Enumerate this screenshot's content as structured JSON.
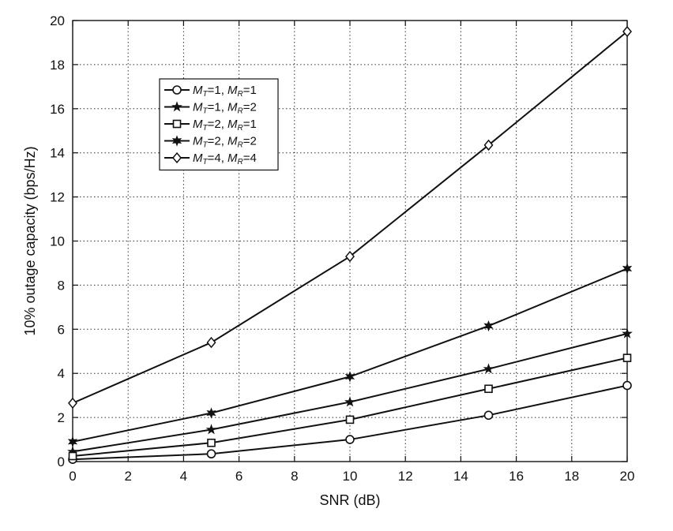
{
  "chart_data": {
    "type": "line",
    "xlabel": "SNR (dB)",
    "ylabel": "10% outage capacity (bps/Hz)",
    "xlim": [
      0,
      20
    ],
    "ylim": [
      0,
      20
    ],
    "x_ticks": [
      0,
      2,
      4,
      6,
      8,
      10,
      12,
      14,
      16,
      18,
      20
    ],
    "y_ticks": [
      0,
      2,
      4,
      6,
      8,
      10,
      12,
      14,
      16,
      18,
      20
    ],
    "grid": true,
    "legend_position": "upper-left",
    "x": [
      0,
      5,
      10,
      15,
      20
    ],
    "series": [
      {
        "name": "M_T=1, M_R=1",
        "mt": "1",
        "mr": "1",
        "marker": "circle",
        "values": [
          0.1,
          0.35,
          1.0,
          2.1,
          3.45
        ]
      },
      {
        "name": "M_T=1, M_R=2",
        "mt": "1",
        "mr": "2",
        "marker": "star",
        "values": [
          0.45,
          1.45,
          2.7,
          4.2,
          5.8
        ]
      },
      {
        "name": "M_T=2, M_R=1",
        "mt": "2",
        "mr": "1",
        "marker": "square",
        "values": [
          0.25,
          0.85,
          1.9,
          3.3,
          4.7
        ]
      },
      {
        "name": "M_T=2, M_R=2",
        "mt": "2",
        "mr": "2",
        "marker": "star6",
        "values": [
          0.9,
          2.2,
          3.85,
          6.15,
          8.75
        ]
      },
      {
        "name": "M_T=4, M_R=4",
        "mt": "4",
        "mr": "4",
        "marker": "diamond",
        "values": [
          2.65,
          5.4,
          9.3,
          14.35,
          19.5
        ]
      }
    ]
  }
}
